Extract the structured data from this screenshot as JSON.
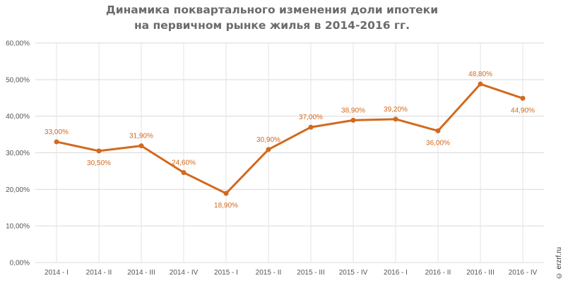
{
  "watermark": "© erzrf.ru",
  "chart_data": {
    "type": "line",
    "title_lines": [
      "Динамика поквартального  изменения доли ипотеки",
      "на первичном рынке жилья в 2014-2016 гг."
    ],
    "categories": [
      "2014 - I",
      "2014 - II",
      "2014 - III",
      "2014 - IV",
      "2015 - I",
      "2015 - II",
      "2015 - III",
      "2015 - IV",
      "2016 - I",
      "2016 - II",
      "2016 - III",
      "2016 - IV"
    ],
    "values": [
      33.0,
      30.5,
      31.9,
      24.6,
      18.9,
      30.9,
      37.0,
      38.9,
      39.2,
      36.0,
      48.8,
      44.9
    ],
    "data_labels": [
      "33,00%",
      "30,50%",
      "31,90%",
      "24,60%",
      "18,90%",
      "30,90%",
      "37,00%",
      "38,90%",
      "39,20%",
      "36,00%",
      "48,80%",
      "44,90%"
    ],
    "y_ticks": [
      0,
      10,
      20,
      30,
      40,
      50,
      60
    ],
    "y_tick_labels": [
      "0,00%",
      "10,00%",
      "20,00%",
      "30,00%",
      "40,00%",
      "50,00%",
      "60,00%"
    ],
    "ylim": [
      0,
      60
    ],
    "xlabel": "",
    "ylabel": "",
    "grid": "horizontal",
    "legend": "none",
    "line_color": "#d2691e",
    "gridline_color": "#d9d9d9"
  }
}
